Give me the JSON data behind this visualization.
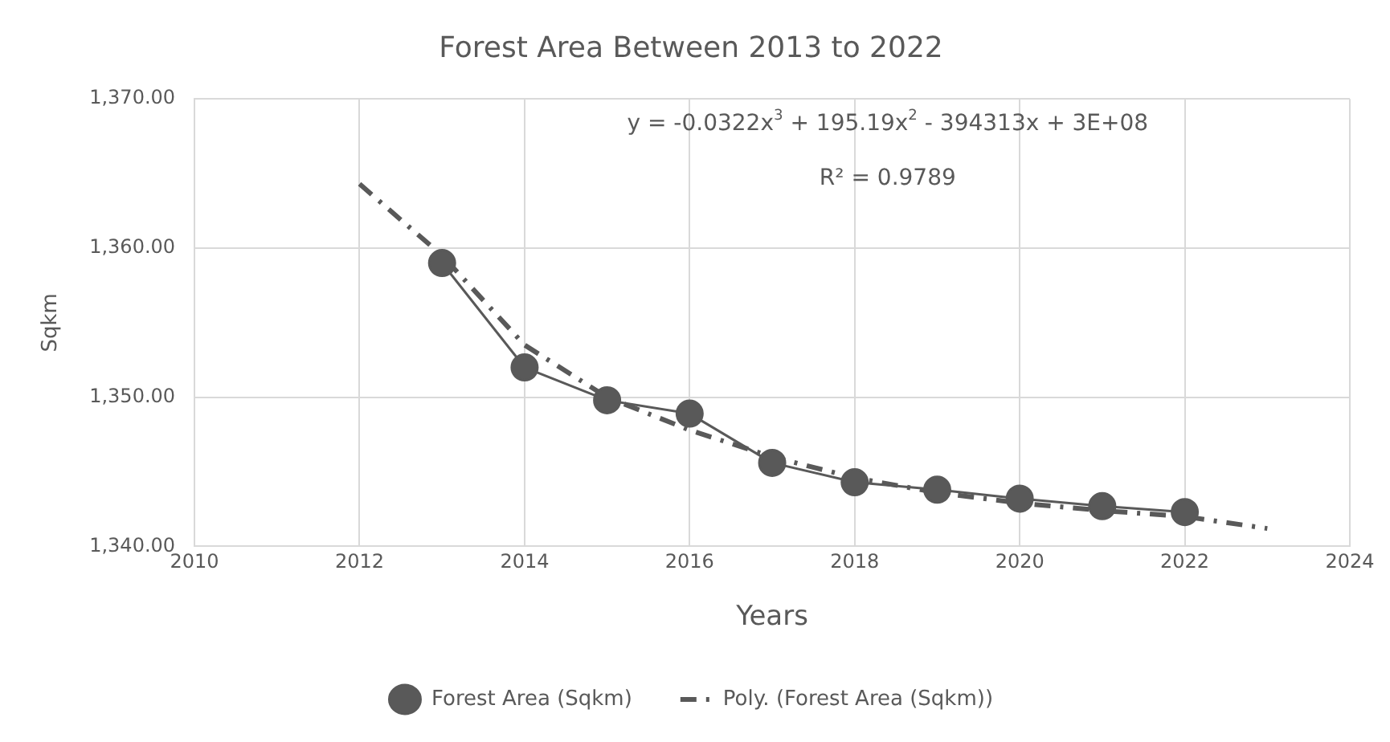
{
  "chart_data": {
    "type": "line",
    "title": "Forest Area Between 2013 to 2022",
    "xlabel": "Years",
    "ylabel": "Sqkm",
    "x": [
      2013,
      2014,
      2015,
      2016,
      2017,
      2018,
      2019,
      2020,
      2021,
      2022
    ],
    "series": [
      {
        "name": "Forest Area (Sqkm)",
        "color": "#595959",
        "marker": "circle",
        "line_style": "solid",
        "values": [
          1359.0,
          1352.0,
          1349.8,
          1348.9,
          1345.6,
          1344.3,
          1343.8,
          1343.2,
          1342.7,
          1342.3
        ]
      },
      {
        "name": "Poly. (Forest Area (Sqkm))",
        "color": "#595959",
        "type": "line",
        "marker": "none",
        "line_style": "dashed",
        "x": [
          2012,
          2013,
          2014,
          2015,
          2016,
          2017,
          2018,
          2019,
          2020,
          2021,
          2022,
          2023
        ],
        "values": [
          1364.3,
          1359.5,
          1353.5,
          1350.0,
          1347.8,
          1346.0,
          1344.6,
          1343.6,
          1342.9,
          1342.4,
          1342.0,
          1341.2
        ]
      }
    ],
    "xlim": [
      2010,
      2024
    ],
    "xticks": [
      2010,
      2012,
      2014,
      2016,
      2018,
      2020,
      2022,
      2024
    ],
    "ylim": [
      1340,
      1370
    ],
    "yticks": [
      {
        "value": 1340,
        "label": "1,340.00"
      },
      {
        "value": 1350,
        "label": "1,350.00"
      },
      {
        "value": 1360,
        "label": "1,360.00"
      },
      {
        "value": 1370,
        "label": "1,370.00"
      }
    ],
    "annotations": [
      "y = -0.0322x$^{3}$ + 195.19x$^{2}$ - 394313x + 3E+08",
      "R² = 0.9789"
    ],
    "grid": true,
    "legend": "bottom"
  }
}
